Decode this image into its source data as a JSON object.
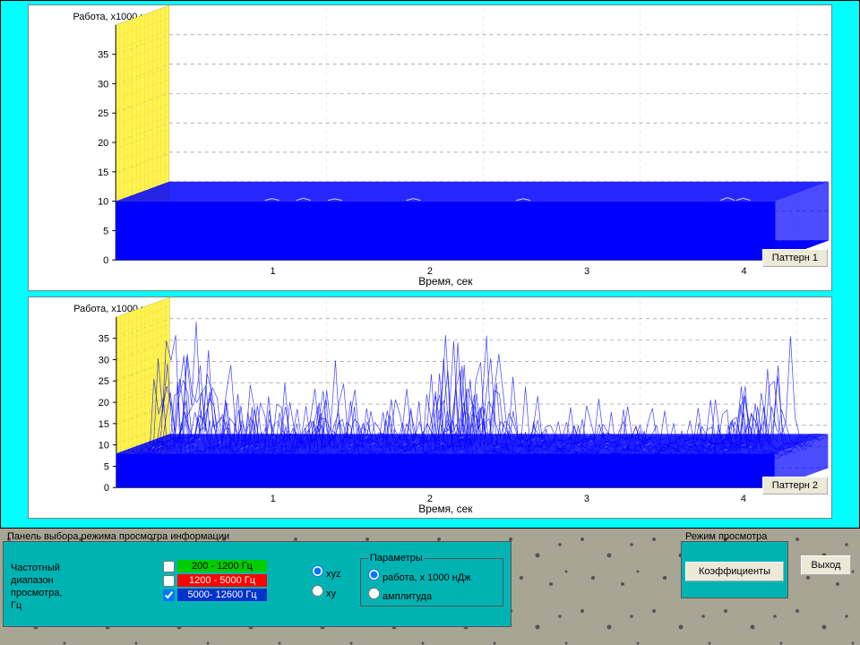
{
  "colors": {
    "page_cyan": "#00ffff",
    "panel_teal": "#00b3b3",
    "wall_fill": "#fff44f",
    "wall_stroke": "#b0a030",
    "data_blue": "#0000ff",
    "grid": "#808080",
    "button_bg": "#ece9d8",
    "freq1_bg": "#00cc00",
    "freq2_bg": "#ff0000",
    "freq3_bg": "#0033cc"
  },
  "chart_common": {
    "y_title": "Работа, х1000 нДж",
    "x_title": "Время, сек",
    "y_ticks": [
      0,
      5,
      10,
      15,
      20,
      25,
      30,
      35
    ],
    "x_ticks": [
      1,
      2,
      3,
      4
    ],
    "ylim": [
      0,
      40
    ],
    "xlim": [
      0,
      4.2
    ],
    "depth_skew_x": 60,
    "depth_skew_y": 22,
    "tick_fontsize": 11,
    "title_fontsize": 11
  },
  "chart1": {
    "type": "3d-ribbon",
    "button": "Паттерн 1",
    "band_level": 10,
    "ripples": [
      {
        "x": 0.95,
        "h": 1.0
      },
      {
        "x": 1.15,
        "h": 1.2
      },
      {
        "x": 1.35,
        "h": 0.8
      },
      {
        "x": 1.85,
        "h": 1.0
      },
      {
        "x": 2.55,
        "h": 0.9
      },
      {
        "x": 3.85,
        "h": 1.5
      },
      {
        "x": 3.95,
        "h": 1.2
      }
    ]
  },
  "chart2": {
    "type": "3d-ribbon-spiky",
    "button": "Паттерн 2",
    "base_level": 8,
    "noise_floor": 3,
    "seed": 7,
    "spikes": [
      {
        "x": 0.25,
        "h": 38
      },
      {
        "x": 0.3,
        "h": 30
      },
      {
        "x": 0.38,
        "h": 25
      },
      {
        "x": 0.55,
        "h": 20
      },
      {
        "x": 0.7,
        "h": 18
      },
      {
        "x": 0.85,
        "h": 22
      },
      {
        "x": 1.0,
        "h": 17
      },
      {
        "x": 1.1,
        "h": 26
      },
      {
        "x": 1.25,
        "h": 20
      },
      {
        "x": 1.45,
        "h": 18
      },
      {
        "x": 1.6,
        "h": 15
      },
      {
        "x": 1.8,
        "h": 22
      },
      {
        "x": 2.0,
        "h": 28
      },
      {
        "x": 2.1,
        "h": 30
      },
      {
        "x": 2.2,
        "h": 22
      },
      {
        "x": 2.4,
        "h": 18
      },
      {
        "x": 2.6,
        "h": 15
      },
      {
        "x": 2.8,
        "h": 17
      },
      {
        "x": 3.0,
        "h": 14
      },
      {
        "x": 3.2,
        "h": 16
      },
      {
        "x": 3.45,
        "h": 14
      },
      {
        "x": 3.7,
        "h": 20
      },
      {
        "x": 3.85,
        "h": 24
      },
      {
        "x": 3.95,
        "h": 32
      }
    ]
  },
  "controls": {
    "panel_title": "Панель выбора режима просмотра информации",
    "freq_label": "Частотный\nдиапазон\nпросмотра,\nГц",
    "freq_ranges": [
      {
        "label": "200 - 1200 Гц",
        "checked": false,
        "bg": "#00cc00",
        "fg": "#000"
      },
      {
        "label": "1200 - 5000 Гц",
        "checked": false,
        "bg": "#ff0000",
        "fg": "#fff"
      },
      {
        "label": "5000- 12600 Гц",
        "checked": true,
        "bg": "#0033cc",
        "fg": "#fff"
      }
    ],
    "axis_mode": {
      "options": [
        "xyz",
        "xy"
      ],
      "selected": "xyz"
    },
    "params": {
      "legend": "Параметры",
      "options": [
        "работа, х 1000 нДж",
        "амплитуда"
      ],
      "selected": "работа, х 1000 нДж"
    },
    "mode_panel_title": "Режим просмотра",
    "coef_btn": "Коэффициенты",
    "exit_btn": "Выход"
  }
}
